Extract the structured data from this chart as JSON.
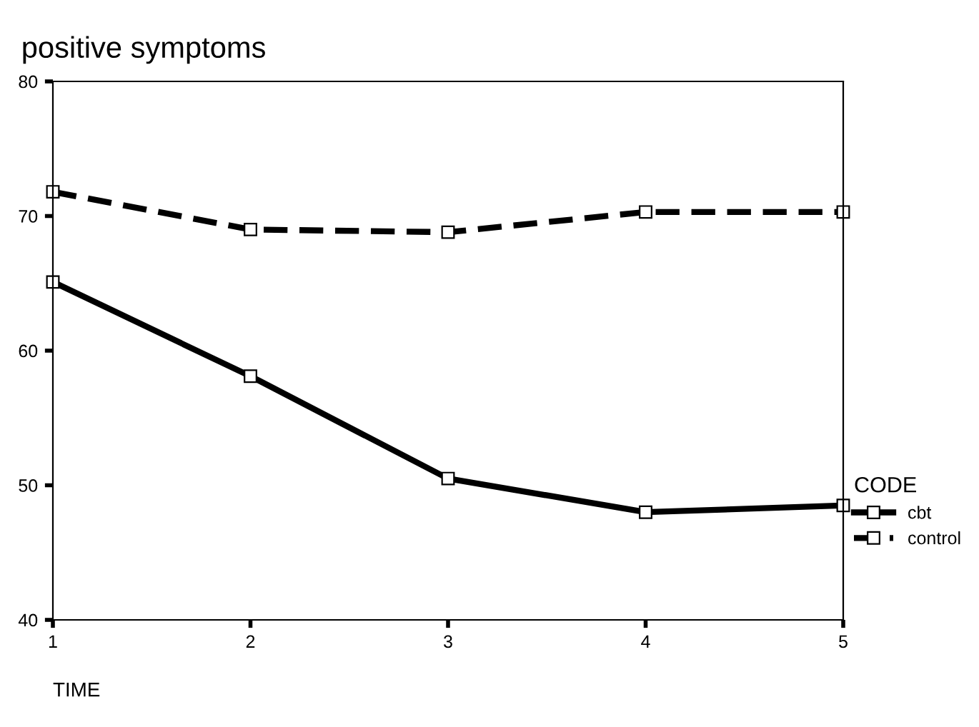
{
  "chart_data": {
    "type": "line",
    "title": "positive symptoms",
    "xlabel": "TIME",
    "legend_title": "CODE",
    "x": [
      1,
      2,
      3,
      4,
      5
    ],
    "xlim": [
      1,
      5
    ],
    "xticks": [
      1,
      2,
      3,
      4,
      5
    ],
    "ylim": [
      40,
      80
    ],
    "yticks": [
      40,
      50,
      60,
      70,
      80
    ],
    "grid": false,
    "legend": "right",
    "marker": "square",
    "series": [
      {
        "name": "cbt",
        "color": "#000000",
        "line_style": "solid",
        "values": [
          65.1,
          58.1,
          50.5,
          48.0,
          48.5
        ]
      },
      {
        "name": "control",
        "color": "#000000",
        "line_style": "dashed",
        "values": [
          71.8,
          69.0,
          68.8,
          70.3,
          70.3
        ]
      }
    ]
  }
}
